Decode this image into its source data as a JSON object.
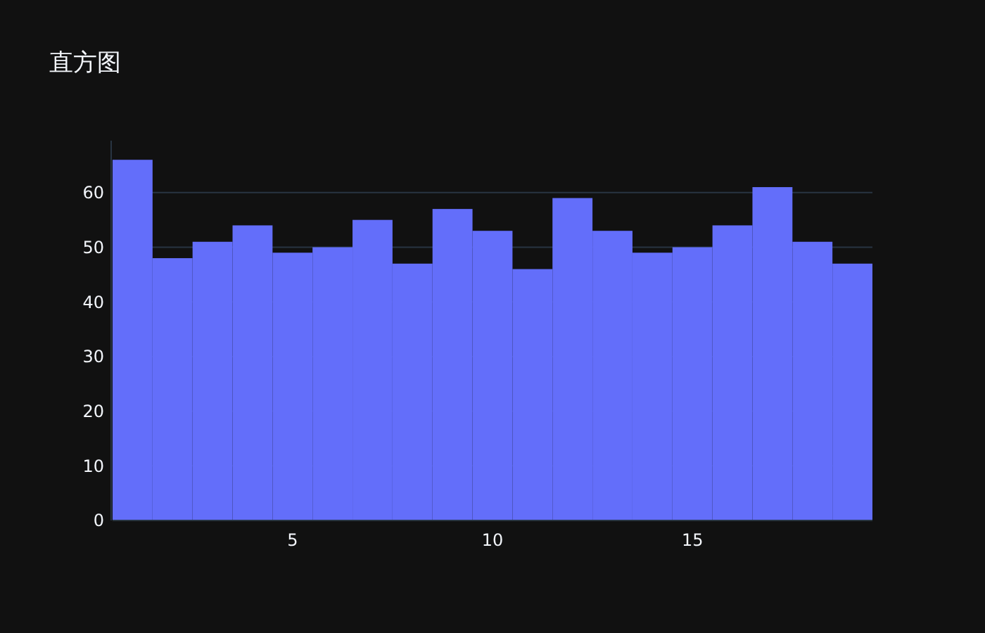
{
  "chart_data": {
    "type": "histogram",
    "title": "直方图",
    "bins": [
      0.5,
      1.5,
      2.5,
      3.5,
      4.5,
      5.5,
      6.5,
      7.5,
      8.5,
      9.5,
      10.5,
      11.5,
      12.5,
      13.5,
      14.5,
      15.5,
      16.5,
      17.5,
      18.5,
      19.5
    ],
    "values": [
      66,
      48,
      51,
      54,
      49,
      50,
      55,
      47,
      57,
      53,
      46,
      59,
      53,
      49,
      50,
      54,
      61,
      51,
      47
    ],
    "color": "#636efa",
    "xlim": [
      0.5,
      19.5
    ],
    "xticks": [
      5,
      10,
      15
    ],
    "ylim": [
      0,
      69.5
    ],
    "yticks": [
      0,
      10,
      20,
      30,
      40,
      50,
      60
    ],
    "grid": "y"
  }
}
